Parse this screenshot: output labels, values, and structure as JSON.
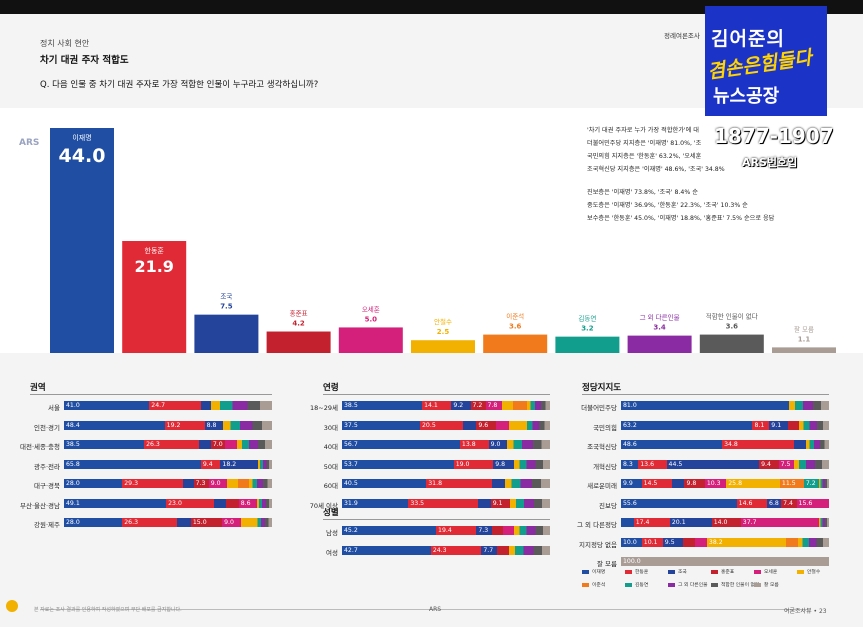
{
  "header": {
    "section": "정치 사회 현안",
    "title": "차기 대권 주자 적합도",
    "question": "Q. 다음 인물 중 차기 대권 주자로 가장 적합한 인물이 누구라고 생각하십니까?",
    "right": "정례여론조사"
  },
  "ars_label": "ARS",
  "commentary": [
    "'차기 대권 주자로 누가 가장 적합한가'에 대",
    "더불어민주당 지지층은 '이재명' 81.0%, '조",
    "국민의힘 지지층은 '한동훈' 63.2%, '오세훈",
    "조국혁신당 지지층은 '이재명' 48.6%, '조국' 34.8%",
    "",
    "진보층은 '이재명' 73.8%, '조국' 8.4% 순",
    "중도층은 '이재명' 36.9%, '한동훈' 22.3%, '조국' 10.3% 순",
    "보수층은 '한동훈' 45.0%, '이재명' 18.8%, '홍준표' 7.5% 순으로 응답"
  ],
  "colors": {
    "이재명": "#1f4ea3",
    "한동훈": "#e02a36",
    "조국": "#24439a",
    "홍준표": "#c4212e",
    "오세훈": "#d4207a",
    "안철수": "#f2b100",
    "이준석": "#f07a1c",
    "김동연": "#119e8c",
    "그외": "#8a2ba3",
    "없다": "#5a5a5a",
    "모름": "#a89c95"
  },
  "chart_data": {
    "type": "bar",
    "categories": [
      "이재명",
      "한동훈",
      "조국",
      "홍준표",
      "오세훈",
      "안철수",
      "이준석",
      "김동연",
      "그 외 다른인물",
      "적합한 인물이 없다",
      "잘 모름"
    ],
    "values": [
      44.0,
      21.9,
      7.5,
      4.2,
      5.0,
      2.5,
      3.6,
      3.2,
      3.4,
      3.6,
      1.1
    ],
    "value_labels": [
      "44.0",
      "21.9",
      "7.5",
      "4.2",
      "5.0",
      "2.5",
      "3.6",
      "3.2",
      "3.4",
      "3.6",
      "1.1"
    ],
    "title": "",
    "xlabel": "",
    "ylabel": ""
  },
  "breakdown": {
    "region": {
      "title": "권역",
      "rows": [
        {
          "label": "서울",
          "values": [
            41.0,
            24.7,
            5.2,
            0,
            0,
            0,
            0,
            0,
            0,
            0,
            0
          ]
        },
        {
          "label": "인천·경기",
          "values": [
            48.4,
            19.2,
            8.8,
            0,
            0,
            0,
            0,
            0,
            0,
            0,
            0
          ]
        },
        {
          "label": "대전·세종·충청",
          "values": [
            38.5,
            26.3,
            5.8,
            7.0,
            5.7,
            0,
            0,
            0,
            0,
            0,
            0
          ]
        },
        {
          "label": "광주·전라",
          "values": [
            65.8,
            9.4,
            18.2,
            0,
            0,
            0,
            0,
            0,
            0,
            0,
            0
          ]
        },
        {
          "label": "대구·경북",
          "values": [
            28.0,
            29.3,
            5.0,
            7.3,
            9.0,
            5.1,
            5.1,
            0,
            0,
            0,
            0
          ]
        },
        {
          "label": "부산·울산·경남",
          "values": [
            49.1,
            23.0,
            5.6,
            6.3,
            8.6,
            0,
            0,
            0,
            0,
            0,
            0
          ]
        },
        {
          "label": "강원·제주",
          "values": [
            28.0,
            26.3,
            6.7,
            15.0,
            9.0,
            6.7,
            0,
            0,
            0,
            0,
            0
          ]
        }
      ]
    },
    "age": {
      "title": "연령",
      "rows": [
        {
          "label": "18~29세",
          "values": [
            38.5,
            14.1,
            9.2,
            7.2,
            7.8,
            5.6,
            6.4
          ]
        },
        {
          "label": "30대",
          "values": [
            37.5,
            20.5,
            6.6,
            9.6,
            6.3,
            6.4
          ]
        },
        {
          "label": "40대",
          "values": [
            56.7,
            13.8,
            9.0
          ]
        },
        {
          "label": "50대",
          "values": [
            53.7,
            19.0,
            9.8
          ]
        },
        {
          "label": "60대",
          "values": [
            40.5,
            31.8,
            6.2
          ]
        },
        {
          "label": "70세 이상",
          "values": [
            31.9,
            33.5,
            6.1,
            9.1
          ]
        }
      ]
    },
    "gender": {
      "title": "성별",
      "rows": [
        {
          "label": "남성",
          "values": [
            45.2,
            19.4,
            7.3,
            5.3,
            5.6
          ]
        },
        {
          "label": "여성",
          "values": [
            42.7,
            24.3,
            7.7,
            5.7
          ]
        }
      ]
    },
    "party": {
      "title": "정당지지도",
      "rows": [
        {
          "label": "더불어민주당",
          "values": [
            81.0
          ]
        },
        {
          "label": "국민의힘",
          "values": [
            63.2,
            8.1,
            9.1,
            5.4
          ]
        },
        {
          "label": "조국혁신당",
          "values": [
            48.6,
            34.8,
            5.6
          ]
        },
        {
          "label": "개혁신당",
          "values": [
            8.3,
            13.6,
            44.5,
            9.4,
            7.5
          ]
        },
        {
          "label": "새로운미래",
          "values": [
            9.9,
            14.5,
            6.1,
            9.8,
            10.3,
            25.8,
            11.5,
            7.2
          ]
        },
        {
          "label": "진보당",
          "values": [
            55.6,
            14.6,
            6.8,
            7.4,
            15.6
          ]
        },
        {
          "label": "그 외 다른정당",
          "values": [
            6.1,
            17.4,
            20.1,
            14.0,
            37.7
          ]
        },
        {
          "label": "지지정당 없음",
          "values": [
            10.0,
            10.1,
            9.5,
            6.1,
            5.6,
            38.2,
            5.6
          ]
        },
        {
          "label": "잘 모름",
          "values": [
            100.0
          ]
        }
      ]
    }
  },
  "legend": [
    "이재명",
    "한동훈",
    "조국",
    "홍준표",
    "오세훈",
    "안철수",
    "이준석",
    "김동연",
    "그 외 다른인물",
    "적합한 인물이 없다",
    "잘 모름"
  ],
  "footer": {
    "left": "본 자료는 조사 결과를 인용하여 작성하였으며 무단 배포를 금지합니다.",
    "center": "ARS",
    "right": "여론조사뷰 • 23"
  },
  "brand": {
    "line1": "김어준의",
    "line2": "겸손은힘들다",
    "line3": "뉴스공장"
  },
  "phone": {
    "number": "1877-1907",
    "sub": "ARS번호입"
  }
}
